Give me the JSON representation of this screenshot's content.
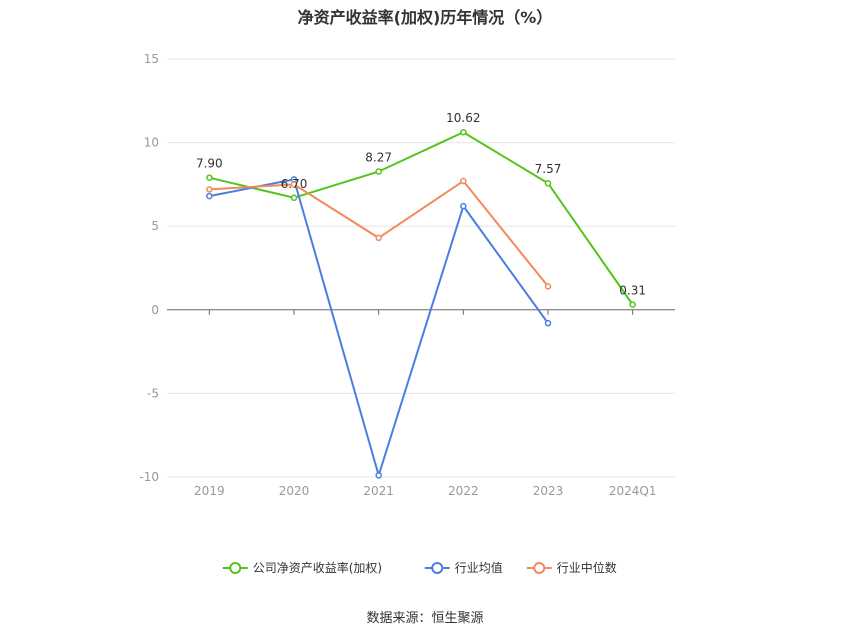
{
  "chart_data": {
    "type": "line",
    "title": "净资产收益率(加权)历年情况（%）",
    "categories": [
      "2019",
      "2020",
      "2021",
      "2022",
      "2023",
      "2024Q1"
    ],
    "ylim": [
      -10,
      15
    ],
    "yticks": [
      15,
      10,
      5,
      0,
      -5,
      -10
    ],
    "grid": true,
    "legend_position": "bottom",
    "series": [
      {
        "name": "公司净资产收益率(加权)",
        "color": "#52c41a",
        "values": [
          7.9,
          6.7,
          8.27,
          10.62,
          7.57,
          0.31
        ],
        "labels": [
          "7.90",
          "6.70",
          "8.27",
          "10.62",
          "7.57",
          "0.31"
        ]
      },
      {
        "name": "行业均值",
        "color": "#4a7ee0",
        "values": [
          6.8,
          7.8,
          -9.9,
          6.2,
          -0.8,
          null
        ]
      },
      {
        "name": "行业中位数",
        "color": "#f08a5d",
        "values": [
          7.2,
          7.5,
          4.3,
          7.7,
          1.4,
          null
        ]
      }
    ]
  },
  "source": "数据来源：恒生聚源"
}
